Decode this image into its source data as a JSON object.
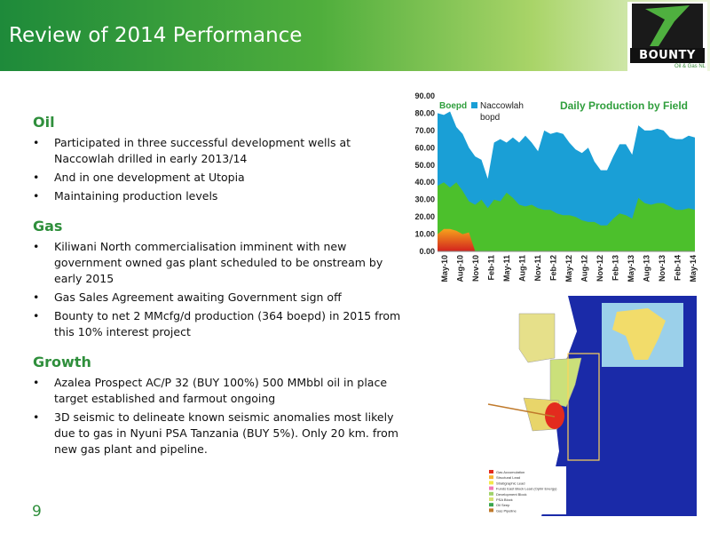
{
  "title": "Review of 2014 Performance",
  "logo": {
    "name": "BOUNTY",
    "sub": "Oil & Gas NL"
  },
  "page_number": "9",
  "sections": [
    {
      "heading": "Oil",
      "bullets": [
        "Participated in three successful development wells at Naccowlah drilled in early 2013/14",
        "And in one development at Utopia",
        "Maintaining production levels"
      ]
    },
    {
      "heading": "Gas",
      "bullets": [
        "Kiliwani North commercialisation imminent with new government owned gas plant scheduled to be onstream by early 2015",
        "Gas Sales Agreement awaiting Government sign off",
        "Bounty to net 2 MMcfg/d production (364 boepd) in 2015 from this 10% interest project"
      ]
    },
    {
      "heading": "Growth",
      "bullets": [
        "Azalea Prospect AC/P 32 (BUY 100%) 500 MMbbl oil in place target established and farmout ongoing",
        "3D seismic to delineate known seismic anomalies most likely due to gas in Nyuni PSA Tanzania (BUY 5%).  Only 20 km. from new gas plant and pipeline."
      ]
    }
  ],
  "chart_data": {
    "type": "area",
    "title": "Daily Production by Field",
    "ylabel": "Boepd",
    "ylim": [
      0,
      90
    ],
    "yticks": [
      "0.00",
      "10.00",
      "20.00",
      "30.00",
      "40.00",
      "50.00",
      "60.00",
      "70.00",
      "80.00",
      "90.00"
    ],
    "xticks": [
      "May-10",
      "Aug-10",
      "Nov-10",
      "Feb-11",
      "May-11",
      "Aug-11",
      "Nov-11",
      "Feb-12",
      "May-12",
      "Aug-12",
      "Nov-12",
      "Feb-13",
      "May-13",
      "Aug-13",
      "Nov-13",
      "Feb-14",
      "May-14"
    ],
    "series": [
      {
        "name": "Naccowlah bopd",
        "color": "#1a9fd6",
        "values": [
          80,
          79,
          81,
          72,
          68,
          60,
          55,
          53,
          42,
          63,
          65,
          63,
          66,
          63,
          67,
          63,
          58,
          70,
          68,
          69,
          68,
          63,
          59,
          57,
          60,
          52,
          47,
          47,
          55,
          62,
          62,
          56,
          73,
          70,
          70,
          71,
          70,
          66,
          65,
          65,
          67,
          66
        ]
      },
      {
        "name": "",
        "color": "#4cc02c",
        "values": [
          38,
          40,
          37,
          40,
          35,
          29,
          27,
          30,
          25,
          30,
          29,
          34,
          31,
          27,
          26,
          27,
          25,
          24,
          24,
          22,
          21,
          21,
          20,
          18,
          17,
          17,
          15,
          15,
          19,
          22,
          21,
          19,
          31,
          28,
          27,
          28,
          28,
          26,
          24,
          24,
          25,
          24
        ]
      },
      {
        "name": "",
        "color": "#e04020",
        "values": [
          10,
          13,
          13,
          12,
          10,
          11,
          0,
          0,
          0,
          0,
          0,
          0,
          0,
          0,
          0,
          0,
          0,
          0,
          0,
          0,
          0,
          0,
          0,
          0,
          0,
          0,
          0,
          0,
          0,
          0,
          0,
          0,
          0,
          0,
          0,
          0,
          0,
          0,
          0,
          0,
          0,
          0
        ]
      }
    ]
  },
  "map": {
    "legend": [
      "Gas Accumulation",
      "Structural Lead",
      "Stratigraphic Lead",
      "Funds East Block Lead (Ophir Energy)",
      "Development Block",
      "PSA Block",
      "Oil Seep",
      "Gas Pipeline"
    ],
    "legend_colors": [
      "#e32b1e",
      "#f7b233",
      "#f3e84a",
      "#f27ab5",
      "#9fd26a",
      "#d7e071",
      "#3aa64e",
      "#c07a2c"
    ]
  }
}
